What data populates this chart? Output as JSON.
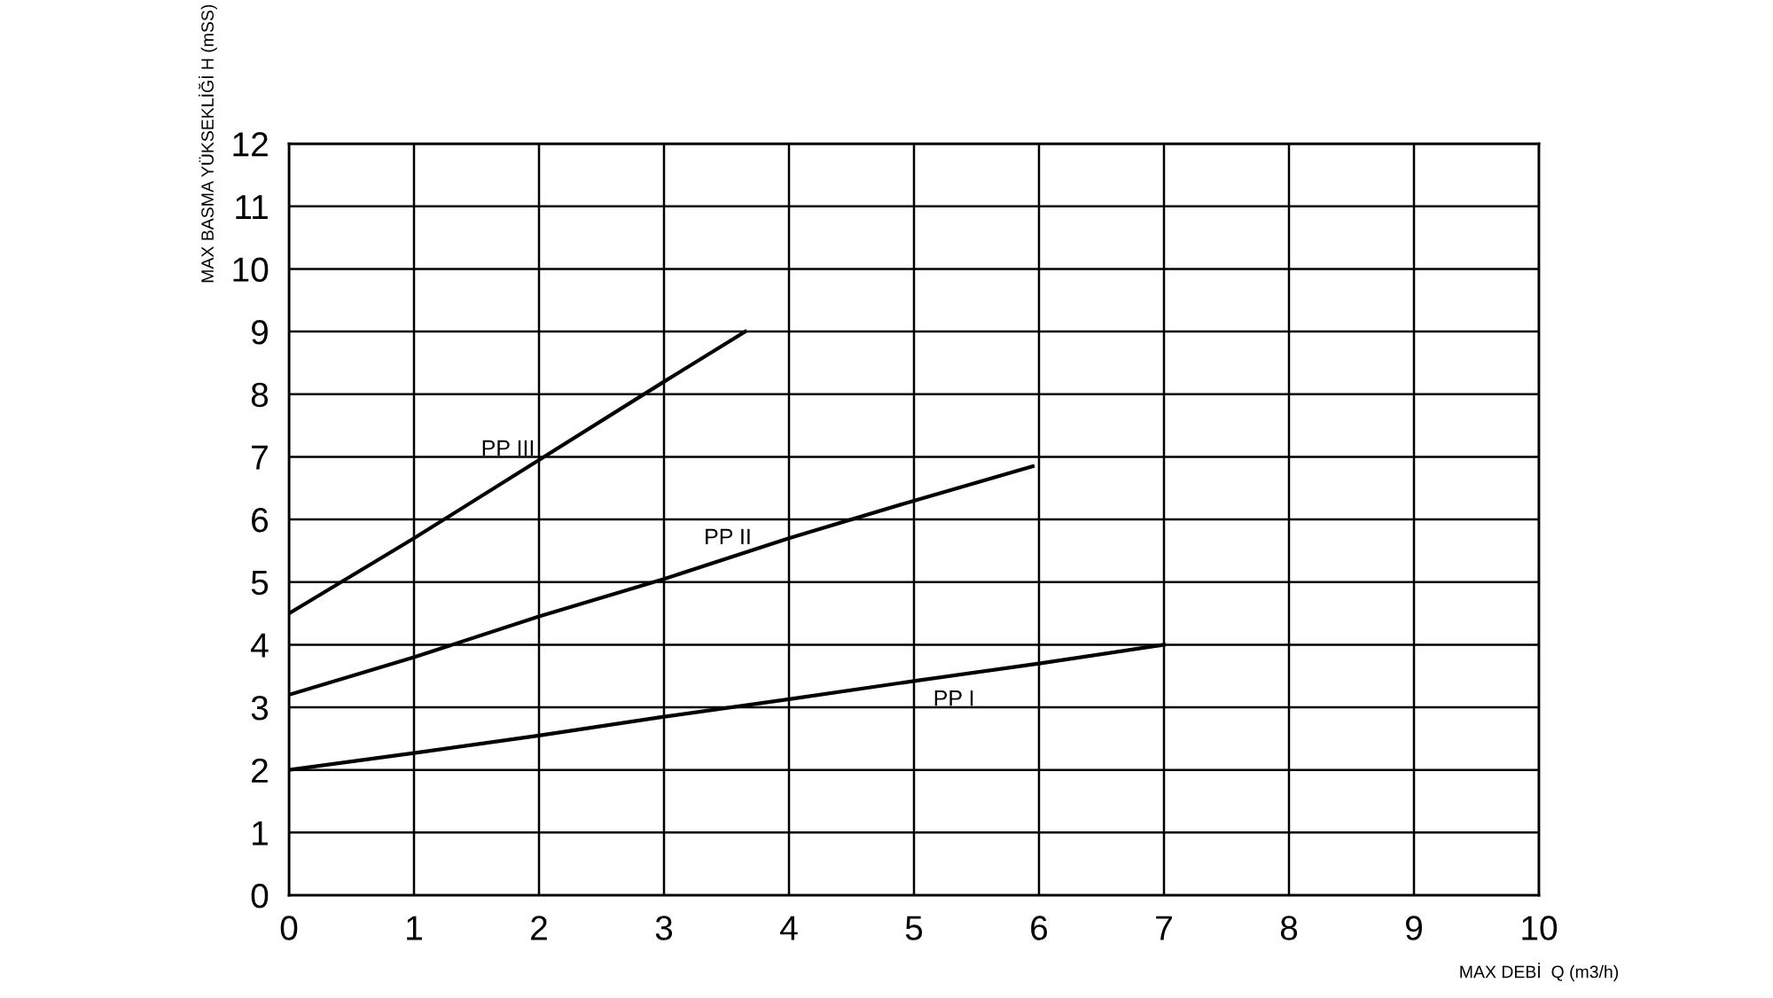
{
  "chart_data": {
    "type": "line",
    "xlabel": "MAX DEBİ  Q (m3/h)",
    "ylabel": "MAX BASMA YÜKSEKLİĞİ H (mSS)",
    "xlim": [
      0,
      10
    ],
    "ylim": [
      0,
      12
    ],
    "xticks": [
      0,
      1,
      2,
      3,
      4,
      5,
      6,
      7,
      8,
      9,
      10
    ],
    "yticks": [
      0,
      1,
      2,
      3,
      4,
      5,
      6,
      7,
      8,
      9,
      10,
      11,
      12
    ],
    "grid": true,
    "legend": false,
    "marker": "none",
    "line_style": "solid",
    "series": [
      {
        "name": "PP III",
        "color": "#000000",
        "x": [
          0,
          1,
          2,
          3,
          3.65
        ],
        "values": [
          4.5,
          5.7,
          6.95,
          8.2,
          9.0
        ]
      },
      {
        "name": "PP II",
        "color": "#000000",
        "x": [
          0,
          1,
          2,
          3,
          4,
          5,
          5.95
        ],
        "values": [
          3.2,
          3.8,
          4.45,
          5.05,
          5.7,
          6.3,
          6.85
        ]
      },
      {
        "name": "PP I",
        "color": "#000000",
        "x": [
          0,
          1,
          2,
          3,
          4,
          5,
          6,
          7
        ],
        "values": [
          2.0,
          2.27,
          2.55,
          2.85,
          3.13,
          3.42,
          3.7,
          4.0
        ]
      }
    ]
  }
}
